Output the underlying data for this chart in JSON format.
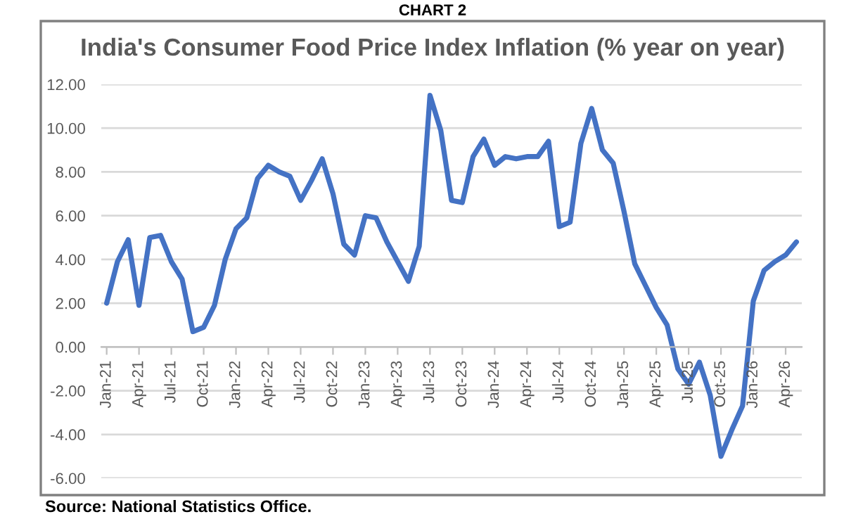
{
  "chart_data": {
    "type": "line",
    "title": "India's Consumer Food Price Index Inflation (% year on year)",
    "annotations": [
      "CHART 2",
      "Source: National Statistics Office."
    ],
    "categories": [
      "Jan-21",
      null,
      null,
      "Apr-21",
      null,
      null,
      "Jul-21",
      null,
      null,
      "Oct-21",
      null,
      null,
      "Jan-22",
      null,
      null,
      "Apr-22",
      null,
      null,
      "Jul-22",
      null,
      null,
      "Oct-22",
      null,
      null,
      "Jan-23",
      null,
      null,
      "Apr-23",
      null,
      null,
      "Jul-23",
      null,
      null,
      "Oct-23",
      null,
      null,
      "Jan-24",
      null,
      null,
      "Apr-24",
      null,
      null,
      "Jul-24",
      null,
      null,
      "Oct-24",
      null,
      null,
      "Jan-25",
      null,
      null,
      "Apr-25",
      null,
      null,
      "Jul-25",
      null,
      null,
      "Oct-25",
      null,
      null,
      "Jan-26",
      null,
      null,
      "Apr-26",
      null
    ],
    "series": [
      {
        "color": "#4472c4",
        "values": [
          2.0,
          3.9,
          4.9,
          1.9,
          5.0,
          5.1,
          3.9,
          3.1,
          0.7,
          0.9,
          1.9,
          4.0,
          5.4,
          5.9,
          7.7,
          8.3,
          8.0,
          7.8,
          6.7,
          7.6,
          8.6,
          7.0,
          4.7,
          4.2,
          6.0,
          5.9,
          4.8,
          3.9,
          3.0,
          4.6,
          11.5,
          9.9,
          6.7,
          6.6,
          8.7,
          9.5,
          8.3,
          8.7,
          8.6,
          8.7,
          8.7,
          9.4,
          5.5,
          5.7,
          9.3,
          10.9,
          9.0,
          8.4,
          6.2,
          3.8,
          2.8,
          1.8,
          1.0,
          -1.0,
          -1.7,
          -0.7,
          -2.2,
          -5.0,
          -3.8,
          -2.7,
          2.1,
          3.5,
          3.9,
          4.2,
          4.8
        ]
      }
    ],
    "ylim": [
      -6,
      12
    ],
    "yticks": [
      {
        "value": -6,
        "label": "-6.00"
      },
      {
        "value": -4,
        "label": "-4.00"
      },
      {
        "value": -2,
        "label": "-2.00"
      },
      {
        "value": 0,
        "label": "0.00"
      },
      {
        "value": 2,
        "label": "2.00"
      },
      {
        "value": 4,
        "label": "4.00"
      },
      {
        "value": 6,
        "label": "6.00"
      },
      {
        "value": 8,
        "label": "8.00"
      },
      {
        "value": 10,
        "label": "10.00"
      },
      {
        "value": 12,
        "label": "12.00"
      }
    ],
    "grid": "y",
    "marker": "none",
    "line_style": "solid"
  }
}
